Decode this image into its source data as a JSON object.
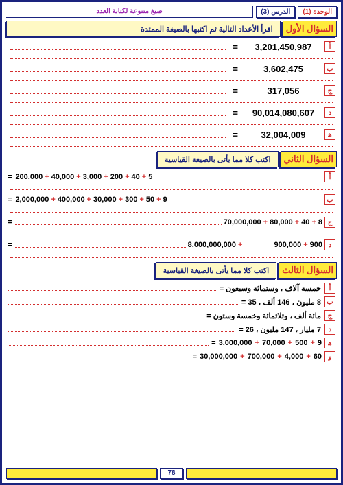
{
  "header": {
    "unit": "الوحدة (1)",
    "lesson": "الدرس  (3)",
    "title": "صيغ متنوعة لكتابة العدد"
  },
  "q1": {
    "label": "السؤال الأول",
    "prompt": "اقرأ الأعداد التالية ثم اكتبها بالصيغة الممتدة",
    "rows": [
      {
        "letter": "أ",
        "number": "3,201,450,987"
      },
      {
        "letter": "ب",
        "number": "3,602,475"
      },
      {
        "letter": "ج",
        "number": "317,056"
      },
      {
        "letter": "د",
        "number": "90,014,080,607"
      },
      {
        "letter": "ﻫ",
        "number": "32,004,009"
      }
    ]
  },
  "q2": {
    "label": "السؤال الثاني",
    "prompt": "اكتب كلا مما يأتى بالصيغة القياسية",
    "rows": [
      {
        "letter": "أ",
        "terms": [
          "5",
          "40",
          "200",
          "3,000",
          "40,000",
          "200,000"
        ],
        "pre_fill": false
      },
      {
        "letter": "ب",
        "terms": [
          "9",
          "50",
          "300",
          "30,000",
          "400,000",
          "2,000,000"
        ],
        "pre_fill": false
      },
      {
        "letter": "ج",
        "terms": [
          "8",
          "40",
          "80,000",
          "70,000,000"
        ],
        "pre_fill": true
      },
      {
        "letter": "د",
        "terms": [
          "900",
          "900,000",
          "8,000,000,000"
        ],
        "pre_fill": true,
        "gap_after": 1
      }
    ]
  },
  "q3": {
    "label": "السؤال الثالث",
    "prompt": "اكتب كلا مما يأتى بالصيغة القياسية",
    "text_rows": [
      {
        "letter": "أ",
        "text": "خمسة آلاف ، وستمائة وسبعون  ="
      },
      {
        "letter": "ب",
        "text": "8 مليون ، 146 ألف ، 35  ="
      },
      {
        "letter": "ج",
        "text": "مائة ألف ، وثلاثمائة وخمسة وستون ="
      },
      {
        "letter": "د",
        "text": "7 مليار ، 147 مليون ، 26  ="
      }
    ],
    "math_rows": [
      {
        "letter": "ﻫ",
        "terms": [
          "9",
          "500",
          "70,000",
          "3,000,000"
        ]
      },
      {
        "letter": "و",
        "terms": [
          "60",
          "4,000",
          "700,000",
          "30,000,000"
        ]
      }
    ]
  },
  "footer": {
    "page": "78"
  },
  "colors": {
    "navy": "#1a237e",
    "red": "#d32f2f",
    "purple": "#9c27b0",
    "yellow": "#ffeb3b",
    "yellow_light": "#fff9c4"
  }
}
